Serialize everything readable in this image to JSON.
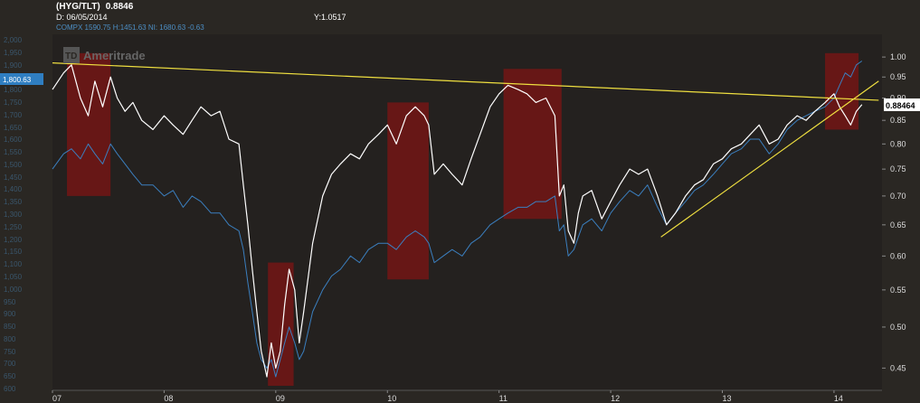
{
  "header": {
    "symbol": "(HYG/TLT)",
    "last": "0.8846",
    "date_label": "D:",
    "date_value": "06/05/2014",
    "y_label": "Y:",
    "y_value": "1.0517",
    "comparison_legend": "COMPX 1590.75 H:1451.63 NI: 1680.63 -0.63"
  },
  "watermark": "Ameritrade",
  "watermark_logo": "TD",
  "colors": {
    "background": "#24211f",
    "frame": "#2a2723",
    "ratio_line": "#ffffff",
    "comparison_line": "#3b7fbf",
    "trendline": "#f0e040",
    "highlight": "#7a1414",
    "right_axis_text": "#dddddd",
    "left_axis_text": "#4c8ec4"
  },
  "chart_data": {
    "type": "line",
    "title": "",
    "x_ticks": [
      "07",
      "08",
      "09",
      "10",
      "11",
      "12",
      "13",
      "14"
    ],
    "y_right_ticks": [
      1.0,
      0.95,
      0.9,
      0.85,
      0.8,
      0.75,
      0.7,
      0.65,
      0.6,
      0.55,
      0.5,
      0.45
    ],
    "y_right_scale": "log",
    "y_right_range": [
      0.425,
      1.06
    ],
    "current_value_label": "0.88464",
    "left_axis_badge": "1,800.63",
    "left_axis_ticks": [
      "2,000",
      "1,950",
      "1,900",
      "1,850",
      "1,800",
      "1,750",
      "1,700",
      "1,650",
      "1,600",
      "1,550",
      "1,500",
      "1,450",
      "1,400",
      "1,350",
      "1,300",
      "1,250",
      "1,200",
      "1,150",
      "1,100",
      "1,050",
      "1,000",
      "950",
      "900",
      "850",
      "800",
      "750",
      "700",
      "650",
      "600"
    ],
    "series": [
      {
        "name": "HYG/TLT",
        "x": [
          2007.0,
          2007.1,
          2007.17,
          2007.25,
          2007.32,
          2007.38,
          2007.45,
          2007.52,
          2007.58,
          2007.65,
          2007.72,
          2007.8,
          2007.9,
          2008.0,
          2008.08,
          2008.17,
          2008.25,
          2008.33,
          2008.42,
          2008.5,
          2008.58,
          2008.67,
          2008.71,
          2008.75,
          2008.79,
          2008.83,
          2008.87,
          2008.92,
          2008.96,
          2009.0,
          2009.04,
          2009.08,
          2009.12,
          2009.17,
          2009.21,
          2009.25,
          2009.33,
          2009.42,
          2009.5,
          2009.58,
          2009.67,
          2009.75,
          2009.83,
          2009.92,
          2010.0,
          2010.08,
          2010.17,
          2010.25,
          2010.33,
          2010.37,
          2010.42,
          2010.5,
          2010.58,
          2010.67,
          2010.75,
          2010.83,
          2010.92,
          2011.0,
          2011.08,
          2011.17,
          2011.25,
          2011.33,
          2011.42,
          2011.5,
          2011.54,
          2011.58,
          2011.62,
          2011.67,
          2011.71,
          2011.75,
          2011.83,
          2011.92,
          2012.0,
          2012.08,
          2012.17,
          2012.25,
          2012.33,
          2012.42,
          2012.5,
          2012.58,
          2012.67,
          2012.75,
          2012.83,
          2012.92,
          2013.0,
          2013.08,
          2013.17,
          2013.25,
          2013.33,
          2013.42,
          2013.5,
          2013.58,
          2013.67,
          2013.75,
          2013.83,
          2013.92,
          2014.0,
          2014.05,
          2014.1,
          2014.15,
          2014.2,
          2014.25
        ],
        "values": [
          0.92,
          0.96,
          0.98,
          0.9,
          0.86,
          0.94,
          0.88,
          0.95,
          0.9,
          0.87,
          0.89,
          0.85,
          0.83,
          0.86,
          0.84,
          0.82,
          0.85,
          0.88,
          0.86,
          0.87,
          0.81,
          0.8,
          0.72,
          0.65,
          0.58,
          0.52,
          0.47,
          0.44,
          0.48,
          0.45,
          0.47,
          0.53,
          0.58,
          0.55,
          0.48,
          0.52,
          0.62,
          0.7,
          0.74,
          0.76,
          0.78,
          0.77,
          0.8,
          0.82,
          0.84,
          0.8,
          0.86,
          0.88,
          0.86,
          0.84,
          0.74,
          0.76,
          0.74,
          0.72,
          0.77,
          0.82,
          0.88,
          0.91,
          0.93,
          0.92,
          0.91,
          0.89,
          0.9,
          0.86,
          0.7,
          0.72,
          0.64,
          0.62,
          0.67,
          0.7,
          0.71,
          0.66,
          0.69,
          0.72,
          0.75,
          0.74,
          0.75,
          0.7,
          0.65,
          0.67,
          0.7,
          0.72,
          0.73,
          0.76,
          0.77,
          0.79,
          0.8,
          0.82,
          0.84,
          0.8,
          0.81,
          0.84,
          0.86,
          0.85,
          0.87,
          0.89,
          0.91,
          0.88,
          0.86,
          0.84,
          0.87,
          0.885
        ]
      },
      {
        "name": "Comparison",
        "x": [
          2007.0,
          2007.1,
          2007.17,
          2007.25,
          2007.32,
          2007.38,
          2007.45,
          2007.52,
          2007.58,
          2007.65,
          2007.72,
          2007.8,
          2007.9,
          2008.0,
          2008.08,
          2008.17,
          2008.25,
          2008.33,
          2008.42,
          2008.5,
          2008.58,
          2008.67,
          2008.71,
          2008.75,
          2008.79,
          2008.83,
          2008.87,
          2008.92,
          2008.96,
          2009.0,
          2009.04,
          2009.08,
          2009.12,
          2009.17,
          2009.21,
          2009.25,
          2009.33,
          2009.42,
          2009.5,
          2009.58,
          2009.67,
          2009.75,
          2009.83,
          2009.92,
          2010.0,
          2010.08,
          2010.17,
          2010.25,
          2010.33,
          2010.37,
          2010.42,
          2010.5,
          2010.58,
          2010.67,
          2010.75,
          2010.83,
          2010.92,
          2011.0,
          2011.08,
          2011.17,
          2011.25,
          2011.33,
          2011.42,
          2011.5,
          2011.54,
          2011.58,
          2011.62,
          2011.67,
          2011.71,
          2011.75,
          2011.83,
          2011.92,
          2012.0,
          2012.08,
          2012.17,
          2012.25,
          2012.33,
          2012.42,
          2012.5,
          2012.58,
          2012.67,
          2012.75,
          2012.83,
          2012.92,
          2013.0,
          2013.08,
          2013.17,
          2013.25,
          2013.33,
          2013.42,
          2013.5,
          2013.58,
          2013.67,
          2013.75,
          2013.83,
          2013.92,
          2014.0,
          2014.05,
          2014.1,
          2014.15,
          2014.2,
          2014.25
        ],
        "values": [
          0.75,
          0.78,
          0.79,
          0.77,
          0.8,
          0.78,
          0.76,
          0.8,
          0.78,
          0.76,
          0.74,
          0.72,
          0.72,
          0.7,
          0.71,
          0.68,
          0.7,
          0.69,
          0.67,
          0.67,
          0.65,
          0.64,
          0.61,
          0.56,
          0.52,
          0.48,
          0.46,
          0.45,
          0.46,
          0.44,
          0.46,
          0.48,
          0.5,
          0.48,
          0.46,
          0.47,
          0.52,
          0.55,
          0.57,
          0.58,
          0.6,
          0.59,
          0.61,
          0.62,
          0.62,
          0.61,
          0.63,
          0.64,
          0.63,
          0.62,
          0.59,
          0.6,
          0.61,
          0.6,
          0.62,
          0.63,
          0.65,
          0.66,
          0.67,
          0.68,
          0.68,
          0.69,
          0.69,
          0.7,
          0.64,
          0.65,
          0.6,
          0.61,
          0.63,
          0.65,
          0.66,
          0.64,
          0.67,
          0.69,
          0.71,
          0.7,
          0.72,
          0.68,
          0.65,
          0.67,
          0.69,
          0.71,
          0.72,
          0.74,
          0.76,
          0.78,
          0.79,
          0.81,
          0.81,
          0.78,
          0.8,
          0.83,
          0.85,
          0.86,
          0.87,
          0.88,
          0.9,
          0.93,
          0.96,
          0.95,
          0.98,
          0.99
        ]
      }
    ],
    "trendlines": [
      {
        "from": [
          2007.0,
          0.985
        ],
        "to": [
          2014.4,
          0.895
        ]
      },
      {
        "from": [
          2012.45,
          0.63
        ],
        "to": [
          2014.4,
          0.94
        ]
      }
    ],
    "highlight_zones": [
      {
        "x0": 2007.13,
        "x1": 2007.52,
        "y0": 0.7,
        "y1": 1.01
      },
      {
        "x0": 2008.93,
        "x1": 2009.16,
        "y0": 0.43,
        "y1": 0.59
      },
      {
        "x0": 2010.0,
        "x1": 2010.37,
        "y0": 0.565,
        "y1": 0.89
      },
      {
        "x0": 2011.04,
        "x1": 2011.56,
        "y0": 0.66,
        "y1": 0.97
      },
      {
        "x0": 2013.92,
        "x1": 2014.22,
        "y0": 0.83,
        "y1": 1.01
      }
    ]
  }
}
